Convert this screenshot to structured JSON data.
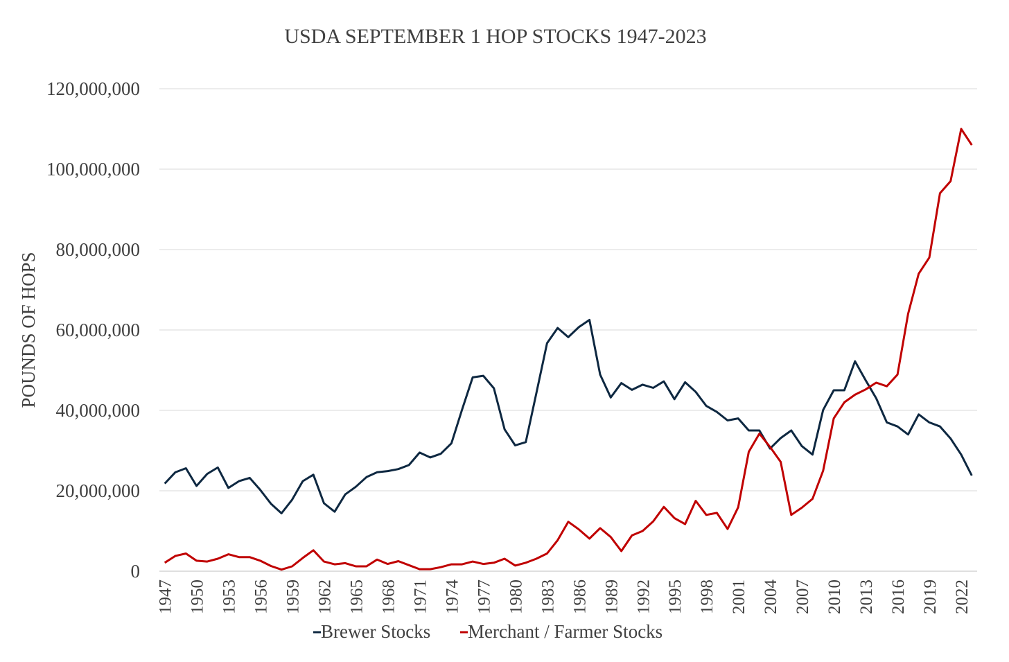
{
  "chart_data": {
    "type": "line",
    "title": "USDA SEPTEMBER 1 HOP STOCKS 1947-2023",
    "xlabel": "",
    "ylabel": "POUNDS OF HOPS",
    "ylim": [
      0,
      120000000
    ],
    "yticks": [
      "0",
      "20,000,000",
      "40,000,000",
      "60,000,000",
      "80,000,000",
      "100,000,000",
      "120,000,000"
    ],
    "ytick_values": [
      0,
      20000000,
      40000000,
      60000000,
      80000000,
      100000000,
      120000000
    ],
    "xticks": [
      "1947",
      "1950",
      "1953",
      "1956",
      "1959",
      "1962",
      "1965",
      "1968",
      "1971",
      "1974",
      "1977",
      "1980",
      "1983",
      "1986",
      "1989",
      "1992",
      "1995",
      "1998",
      "2001",
      "2004",
      "2007",
      "2010",
      "2013",
      "2016",
      "2019",
      "2022"
    ],
    "grid": true,
    "legend_position": "bottom",
    "x": [
      1947,
      1948,
      1949,
      1950,
      1951,
      1952,
      1953,
      1954,
      1955,
      1956,
      1957,
      1958,
      1959,
      1960,
      1961,
      1962,
      1963,
      1964,
      1965,
      1966,
      1967,
      1968,
      1969,
      1970,
      1971,
      1972,
      1973,
      1974,
      1975,
      1976,
      1977,
      1978,
      1979,
      1980,
      1981,
      1982,
      1983,
      1984,
      1985,
      1986,
      1987,
      1988,
      1989,
      1990,
      1991,
      1992,
      1993,
      1994,
      1995,
      1996,
      1997,
      1998,
      1999,
      2000,
      2001,
      2002,
      2003,
      2004,
      2005,
      2006,
      2007,
      2008,
      2009,
      2010,
      2011,
      2012,
      2013,
      2014,
      2015,
      2016,
      2017,
      2018,
      2019,
      2020,
      2021,
      2022,
      2023
    ],
    "series": [
      {
        "name": "Brewer Stocks",
        "color": "#0e2841",
        "values": [
          21800000,
          24600000,
          25600000,
          21200000,
          24200000,
          25800000,
          20700000,
          22400000,
          23200000,
          20200000,
          16800000,
          14400000,
          17800000,
          22400000,
          24000000,
          16900000,
          14800000,
          19100000,
          21000000,
          23400000,
          24600000,
          24900000,
          25400000,
          26400000,
          29500000,
          28300000,
          29200000,
          31800000,
          40200000,
          48200000,
          48600000,
          45500000,
          35300000,
          31300000,
          32100000,
          44300000,
          56700000,
          60500000,
          58200000,
          60700000,
          62500000,
          48900000,
          43200000,
          46800000,
          45100000,
          46400000,
          45600000,
          47200000,
          42800000,
          47000000,
          44600000,
          41100000,
          39600000,
          37500000,
          38000000,
          35000000,
          35000000,
          30500000,
          33100000,
          35000000,
          31100000,
          29000000,
          40100000,
          45000000,
          45000000,
          52200000,
          47500000,
          43000000,
          37000000,
          36000000,
          34000000,
          39000000,
          37000000,
          36000000,
          33000000,
          29000000,
          23800000
        ]
      },
      {
        "name": "Merchant / Farmer Stocks",
        "color": "#c00000",
        "values": [
          2100000,
          3800000,
          4400000,
          2600000,
          2400000,
          3100000,
          4200000,
          3500000,
          3500000,
          2600000,
          1300000,
          400000,
          1200000,
          3300000,
          5200000,
          2400000,
          1700000,
          2000000,
          1200000,
          1200000,
          2900000,
          1800000,
          2500000,
          1500000,
          500000,
          500000,
          1000000,
          1700000,
          1700000,
          2400000,
          1800000,
          2100000,
          3100000,
          1400000,
          2100000,
          3100000,
          4400000,
          7700000,
          12300000,
          10400000,
          8100000,
          10700000,
          8500000,
          5000000,
          8900000,
          10000000,
          12400000,
          16000000,
          13200000,
          11700000,
          17500000,
          14000000,
          14500000,
          10500000,
          15900000,
          29700000,
          34200000,
          30900000,
          27200000,
          14000000,
          15800000,
          18000000,
          25000000,
          38000000,
          42000000,
          43900000,
          45200000,
          46900000,
          46000000,
          48900000,
          64000000,
          74000000,
          78000000,
          94000000,
          97000000,
          110000000,
          106000000
        ]
      }
    ]
  }
}
